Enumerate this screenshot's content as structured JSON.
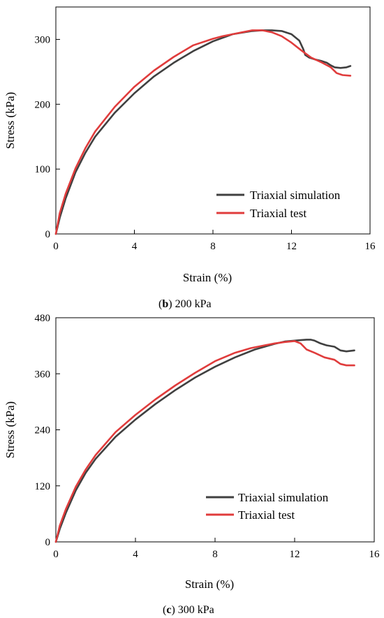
{
  "chart_data": [
    {
      "type": "line",
      "caption_letter": "b",
      "caption_text": ") 200 kPa",
      "caption_paren": "(",
      "xlabel": "Strain (%)",
      "ylabel": "Stress (kPa)",
      "xlim": [
        0,
        16
      ],
      "ylim": [
        0,
        350
      ],
      "xticks": [
        0,
        4,
        8,
        12,
        16
      ],
      "yticks": [
        0,
        100,
        200,
        300
      ],
      "legend_position": "bottom-right",
      "series": [
        {
          "name": "Triaxial simulation",
          "color": "#404040",
          "x": [
            0,
            0.2,
            0.5,
            1,
            1.5,
            2,
            3,
            4,
            5,
            6,
            7,
            8,
            9,
            10,
            10.5,
            11,
            11.5,
            12,
            12.4,
            12.6,
            12.7,
            12.9,
            13.2,
            13.5,
            13.8,
            14,
            14.2,
            14.5,
            14.8,
            15
          ],
          "y": [
            0,
            25,
            55,
            95,
            125,
            150,
            187,
            217,
            243,
            264,
            282,
            297,
            308,
            313,
            314,
            314,
            313,
            308,
            298,
            285,
            276,
            272,
            269,
            267,
            264,
            260,
            257,
            256,
            257,
            259
          ]
        },
        {
          "name": "Triaxial test",
          "color": "#e03c3c",
          "x": [
            0,
            0.2,
            0.5,
            1,
            1.5,
            2,
            3,
            4,
            5,
            6,
            7,
            8,
            8.5,
            9,
            9.5,
            10,
            10.5,
            11,
            11.5,
            12,
            12.5,
            13,
            13.5,
            14,
            14.3,
            14.6,
            15
          ],
          "y": [
            0,
            32,
            62,
            101,
            132,
            158,
            196,
            227,
            252,
            273,
            291,
            301,
            305,
            308,
            311,
            314,
            314,
            311,
            305,
            295,
            283,
            272,
            265,
            257,
            248,
            245,
            244
          ]
        }
      ]
    },
    {
      "type": "line",
      "caption_letter": "c",
      "caption_text": ") 300 kPa",
      "caption_paren": "(",
      "xlabel": "Strain (%)",
      "ylabel": "Stress (kPa)",
      "xlim": [
        0,
        16
      ],
      "ylim": [
        0,
        480
      ],
      "xticks": [
        0,
        4,
        8,
        12,
        16
      ],
      "yticks": [
        0,
        120,
        240,
        360,
        480
      ],
      "legend_position": "bottom-right",
      "series": [
        {
          "name": "Triaxial simulation",
          "color": "#404040",
          "x": [
            0,
            0.2,
            0.5,
            1,
            1.5,
            2,
            3,
            4,
            5,
            6,
            7,
            8,
            9,
            10,
            11,
            11.5,
            12,
            12.3,
            12.6,
            12.8,
            13,
            13.3,
            13.6,
            14,
            14.3,
            14.6,
            15
          ],
          "y": [
            0,
            28,
            62,
            110,
            148,
            178,
            225,
            262,
            295,
            325,
            352,
            375,
            395,
            412,
            424,
            429,
            431,
            432,
            433,
            433,
            431,
            425,
            421,
            418,
            410,
            408,
            410
          ]
        },
        {
          "name": "Triaxial test",
          "color": "#e03c3c",
          "x": [
            0,
            0.2,
            0.5,
            1,
            1.5,
            2,
            3,
            4,
            5,
            6,
            7,
            8,
            9,
            9.8,
            10.5,
            11,
            11.5,
            12,
            12.3,
            12.6,
            13,
            13.5,
            14,
            14.3,
            14.6,
            15
          ],
          "y": [
            0,
            35,
            70,
            118,
            155,
            186,
            235,
            272,
            305,
            335,
            362,
            387,
            405,
            415,
            421,
            425,
            428,
            430,
            425,
            412,
            405,
            395,
            390,
            381,
            378,
            378
          ]
        }
      ]
    }
  ]
}
